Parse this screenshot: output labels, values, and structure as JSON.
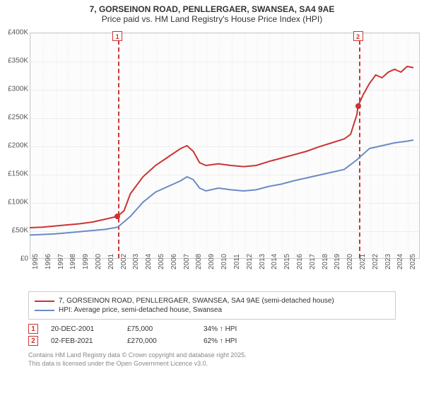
{
  "title": {
    "line1": "7, GORSEINON ROAD, PENLLERGAER, SWANSEA, SA4 9AE",
    "line2": "Price paid vs. HM Land Registry's House Price Index (HPI)"
  },
  "chart": {
    "type": "line",
    "background_color": "#fcfcfc",
    "grid_color": "#eeeeee",
    "axis_color": "#cccccc",
    "label_color": "#555555",
    "xlim": [
      1995,
      2026
    ],
    "ylim": [
      0,
      400000
    ],
    "ytick_step": 50000,
    "ytick_labels": [
      "£0",
      "£50K",
      "£100K",
      "£150K",
      "£200K",
      "£250K",
      "£300K",
      "£350K",
      "£400K"
    ],
    "xtick_step": 1,
    "xtick_labels": [
      "1995",
      "1996",
      "1997",
      "1998",
      "1999",
      "2000",
      "2001",
      "2002",
      "2003",
      "2004",
      "2005",
      "2006",
      "2007",
      "2008",
      "2009",
      "2010",
      "2011",
      "2012",
      "2013",
      "2014",
      "2015",
      "2016",
      "2017",
      "2018",
      "2019",
      "2020",
      "2021",
      "2022",
      "2023",
      "2024",
      "2025"
    ],
    "series": [
      {
        "name": "property",
        "label": "7, GORSEINON ROAD, PENLLERGAER, SWANSEA, SA4 9AE (semi-detached house)",
        "color": "#cc3333",
        "line_width": 2,
        "points": [
          [
            1995,
            55000
          ],
          [
            1996,
            56000
          ],
          [
            1997,
            58000
          ],
          [
            1998,
            60000
          ],
          [
            1999,
            62000
          ],
          [
            2000,
            65000
          ],
          [
            2001,
            70000
          ],
          [
            2001.97,
            75000
          ],
          [
            2002.5,
            85000
          ],
          [
            2003,
            115000
          ],
          [
            2004,
            145000
          ],
          [
            2005,
            165000
          ],
          [
            2006,
            180000
          ],
          [
            2007,
            195000
          ],
          [
            2007.5,
            200000
          ],
          [
            2008,
            190000
          ],
          [
            2008.5,
            170000
          ],
          [
            2009,
            165000
          ],
          [
            2010,
            168000
          ],
          [
            2011,
            165000
          ],
          [
            2012,
            163000
          ],
          [
            2013,
            165000
          ],
          [
            2014,
            172000
          ],
          [
            2015,
            178000
          ],
          [
            2016,
            184000
          ],
          [
            2017,
            190000
          ],
          [
            2018,
            198000
          ],
          [
            2019,
            205000
          ],
          [
            2020,
            212000
          ],
          [
            2020.5,
            220000
          ],
          [
            2021,
            255000
          ],
          [
            2021.09,
            270000
          ],
          [
            2021.5,
            290000
          ],
          [
            2022,
            310000
          ],
          [
            2022.5,
            325000
          ],
          [
            2023,
            320000
          ],
          [
            2023.5,
            330000
          ],
          [
            2024,
            335000
          ],
          [
            2024.5,
            330000
          ],
          [
            2025,
            340000
          ],
          [
            2025.5,
            338000
          ]
        ]
      },
      {
        "name": "hpi",
        "label": "HPI: Average price, semi-detached house, Swansea",
        "color": "#6a8bc6",
        "line_width": 2,
        "points": [
          [
            1995,
            42000
          ],
          [
            1996,
            43000
          ],
          [
            1997,
            44000
          ],
          [
            1998,
            46000
          ],
          [
            1999,
            48000
          ],
          [
            2000,
            50000
          ],
          [
            2001,
            52000
          ],
          [
            2002,
            56000
          ],
          [
            2003,
            75000
          ],
          [
            2004,
            100000
          ],
          [
            2005,
            118000
          ],
          [
            2006,
            128000
          ],
          [
            2007,
            138000
          ],
          [
            2007.5,
            145000
          ],
          [
            2008,
            140000
          ],
          [
            2008.5,
            125000
          ],
          [
            2009,
            120000
          ],
          [
            2010,
            125000
          ],
          [
            2011,
            122000
          ],
          [
            2012,
            120000
          ],
          [
            2013,
            122000
          ],
          [
            2014,
            128000
          ],
          [
            2015,
            132000
          ],
          [
            2016,
            138000
          ],
          [
            2017,
            143000
          ],
          [
            2018,
            148000
          ],
          [
            2019,
            153000
          ],
          [
            2020,
            158000
          ],
          [
            2021,
            175000
          ],
          [
            2022,
            195000
          ],
          [
            2023,
            200000
          ],
          [
            2024,
            205000
          ],
          [
            2025,
            208000
          ],
          [
            2025.5,
            210000
          ]
        ]
      }
    ],
    "markers": [
      {
        "id": "1",
        "x": 2001.97,
        "y": 75000
      },
      {
        "id": "2",
        "x": 2021.09,
        "y": 270000
      }
    ]
  },
  "legend": {
    "items": [
      {
        "color": "#cc3333",
        "label": "7, GORSEINON ROAD, PENLLERGAER, SWANSEA, SA4 9AE (semi-detached house)"
      },
      {
        "color": "#6a8bc6",
        "label": "HPI: Average price, semi-detached house, Swansea"
      }
    ]
  },
  "annotations": [
    {
      "id": "1",
      "date": "20-DEC-2001",
      "price": "£75,000",
      "delta": "34% ↑ HPI"
    },
    {
      "id": "2",
      "date": "02-FEB-2021",
      "price": "£270,000",
      "delta": "62% ↑ HPI"
    }
  ],
  "footer": {
    "line1": "Contains HM Land Registry data © Crown copyright and database right 2025.",
    "line2": "This data is licensed under the Open Government Licence v3.0."
  }
}
